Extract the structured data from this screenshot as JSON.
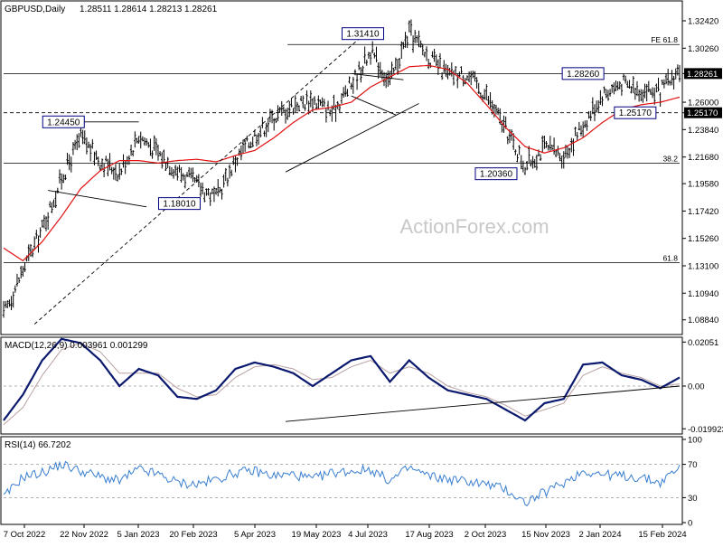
{
  "header": {
    "symbol_info": "GBPUSD,Daily",
    "ohlc": "1.28511 1.28614 1.28213 1.28261"
  },
  "watermark": "ActionForex.com",
  "colors": {
    "bars": "#000000",
    "ma": "#e01010",
    "macd": "#0b1a6e",
    "signal": "#b8a0a0",
    "rsi": "#3a7fd0",
    "label_border": "#000080",
    "last_price_bg": "#000000"
  },
  "chart_data": [
    {
      "type": "line",
      "panel": "price",
      "ylim": [
        1.0768,
        1.3399
      ],
      "y_ticks": [
        "1.32420",
        "1.30260",
        "1.28261",
        "1.26000",
        "1.25170",
        "1.23840",
        "1.21680",
        "1.19580",
        "1.17420",
        "1.15260",
        "1.13100",
        "1.10940",
        "1.08840"
      ],
      "y_tick_values": [
        1.3242,
        1.3026,
        1.28261,
        1.26,
        1.2517,
        1.2384,
        1.2168,
        1.1958,
        1.1742,
        1.1526,
        1.131,
        1.1094,
        1.0884
      ],
      "x_ticks": [
        "7 Oct 2022",
        "22 Nov 2022",
        "5 Jan 2023",
        "20 Feb 2023",
        "5 Apr 2023",
        "19 May 2023",
        "4 Jul 2023",
        "17 Aug 2023",
        "2 Oct 2023",
        "15 Nov 2023",
        "2 Jan 2024",
        "15 Feb 2024"
      ],
      "series": [
        {
          "kind": "close-path",
          "x": [
            0,
            10,
            20,
            30,
            40,
            50,
            60,
            70,
            80,
            90,
            100,
            110,
            120,
            130,
            140,
            150,
            160,
            170,
            180,
            190,
            200,
            210,
            220,
            230,
            240,
            250,
            260,
            270,
            280,
            290,
            300,
            310,
            320,
            330,
            340,
            350
          ],
          "values": [
            1.092,
            1.128,
            1.16,
            1.2,
            1.232,
            1.214,
            1.205,
            1.234,
            1.22,
            1.206,
            1.195,
            1.184,
            1.214,
            1.234,
            1.248,
            1.258,
            1.262,
            1.252,
            1.274,
            1.3,
            1.276,
            1.315,
            1.296,
            1.281,
            1.282,
            1.265,
            1.238,
            1.21,
            1.224,
            1.218,
            1.242,
            1.266,
            1.275,
            1.27,
            1.268,
            1.286
          ]
        },
        {
          "kind": "moving-average",
          "x": [
            0,
            10,
            20,
            30,
            40,
            50,
            60,
            70,
            80,
            90,
            100,
            110,
            120,
            130,
            140,
            150,
            160,
            170,
            180,
            190,
            200,
            210,
            220,
            230,
            240,
            250,
            260,
            270,
            280,
            290,
            300,
            310,
            320,
            330,
            340,
            350
          ],
          "values": [
            1.145,
            1.135,
            1.15,
            1.17,
            1.192,
            1.206,
            1.214,
            1.214,
            1.212,
            1.214,
            1.215,
            1.213,
            1.218,
            1.222,
            1.232,
            1.244,
            1.254,
            1.256,
            1.26,
            1.272,
            1.28,
            1.288,
            1.289,
            1.286,
            1.275,
            1.258,
            1.24,
            1.225,
            1.22,
            1.224,
            1.232,
            1.244,
            1.254,
            1.258,
            1.26,
            1.264
          ]
        }
      ],
      "annotations": {
        "boxed_levels": [
          {
            "label": "1.31410",
            "x": 186,
            "y": 1.3141
          },
          {
            "label": "1.28260",
            "x": 300,
            "y": 1.2826
          },
          {
            "label": "1.24450",
            "x": 31,
            "y": 1.2445
          },
          {
            "label": "1.25170",
            "x": 327,
            "y": 1.2517
          },
          {
            "label": "1.20360",
            "x": 255,
            "y": 1.2036
          },
          {
            "label": "1.18010",
            "x": 91,
            "y": 1.1801
          }
        ],
        "fib_labels": [
          {
            "label": "FE 61.8",
            "y": 1.3055
          },
          {
            "label": "38.2",
            "y": 1.2118
          },
          {
            "label": "61.8",
            "y": 1.1336
          }
        ],
        "last_price": "1.28261",
        "level_1_25170": "1.25170"
      }
    },
    {
      "type": "line",
      "panel": "macd",
      "title": "MACD(12,26,9) 0.003961 0.001299",
      "ylim": [
        -0.0215,
        0.0215
      ],
      "y_ticks": [
        "0.02051",
        "0.00",
        "-0.019923"
      ],
      "y_tick_values": [
        0.02051,
        0.0,
        -0.019923
      ],
      "series": [
        {
          "name": "MACD",
          "x": [
            0,
            10,
            20,
            30,
            40,
            50,
            60,
            70,
            80,
            90,
            100,
            110,
            120,
            130,
            140,
            150,
            160,
            170,
            180,
            190,
            200,
            210,
            220,
            230,
            240,
            250,
            260,
            270,
            280,
            290,
            300,
            310,
            320,
            330,
            340,
            350
          ],
          "values": [
            -0.016,
            -0.004,
            0.012,
            0.022,
            0.02,
            0.012,
            0.0,
            0.008,
            0.005,
            -0.005,
            -0.006,
            -0.002,
            0.008,
            0.011,
            0.009,
            0.006,
            0.0,
            0.006,
            0.012,
            0.014,
            0.002,
            0.012,
            0.004,
            -0.002,
            -0.004,
            -0.006,
            -0.011,
            -0.016,
            -0.008,
            -0.006,
            0.01,
            0.011,
            0.005,
            0.003,
            -0.001,
            0.004
          ]
        },
        {
          "name": "Signal",
          "x": [
            0,
            10,
            20,
            30,
            40,
            50,
            60,
            70,
            80,
            90,
            100,
            110,
            120,
            130,
            140,
            150,
            160,
            170,
            180,
            190,
            200,
            210,
            220,
            230,
            240,
            250,
            260,
            270,
            280,
            290,
            300,
            310,
            320,
            330,
            340,
            350
          ],
          "values": [
            -0.018,
            -0.01,
            0.005,
            0.017,
            0.02,
            0.016,
            0.006,
            0.006,
            0.006,
            -0.001,
            -0.005,
            -0.004,
            0.004,
            0.009,
            0.01,
            0.008,
            0.003,
            0.004,
            0.009,
            0.012,
            0.006,
            0.009,
            0.006,
            0.0,
            -0.003,
            -0.005,
            -0.009,
            -0.014,
            -0.011,
            -0.008,
            0.005,
            0.009,
            0.006,
            0.004,
            0.0,
            0.001
          ]
        }
      ],
      "zero_label": "0.00"
    },
    {
      "type": "line",
      "panel": "rsi",
      "title": "RSI(14) 66.7202",
      "ylim": [
        0,
        100
      ],
      "y_ticks": [
        "100",
        "70",
        "30",
        "0"
      ],
      "y_tick_values": [
        100,
        70,
        30,
        0
      ],
      "series": [
        {
          "name": "RSI",
          "x": [
            0,
            10,
            20,
            30,
            40,
            50,
            60,
            70,
            80,
            90,
            100,
            110,
            120,
            130,
            140,
            150,
            160,
            170,
            180,
            190,
            200,
            210,
            220,
            230,
            240,
            250,
            260,
            270,
            280,
            290,
            300,
            310,
            320,
            330,
            340,
            350
          ],
          "values": [
            30,
            55,
            60,
            70,
            62,
            55,
            50,
            64,
            58,
            48,
            46,
            52,
            60,
            62,
            56,
            58,
            52,
            60,
            62,
            64,
            50,
            66,
            56,
            52,
            50,
            46,
            40,
            24,
            36,
            48,
            62,
            58,
            56,
            54,
            48,
            67
          ]
        }
      ]
    }
  ]
}
